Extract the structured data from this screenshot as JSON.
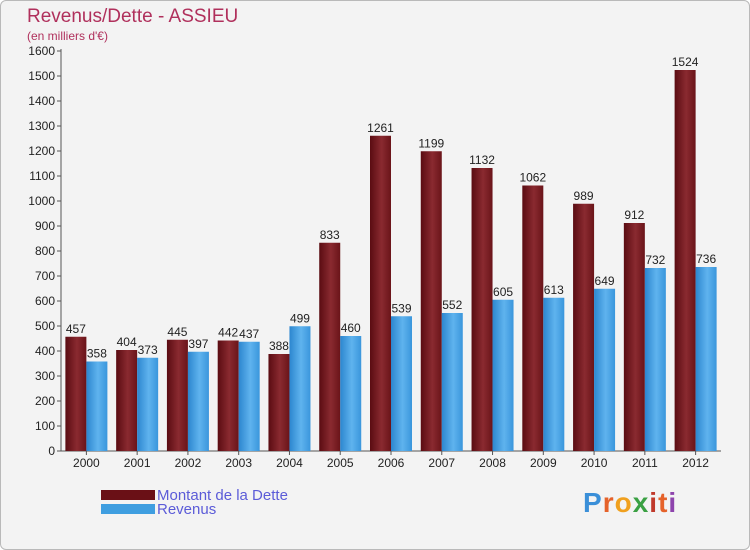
{
  "chart_data": {
    "type": "bar",
    "title": "Revenus/Dette - ASSIEU",
    "subtitle": "(en milliers d'€)",
    "categories": [
      "2000",
      "2001",
      "2002",
      "2003",
      "2004",
      "2005",
      "2006",
      "2007",
      "2008",
      "2009",
      "2010",
      "2011",
      "2012"
    ],
    "series": [
      {
        "name": "Montant de la Dette",
        "color": "#7a1d22",
        "values": [
          457,
          404,
          445,
          442,
          388,
          833,
          1261,
          1199,
          1132,
          1062,
          989,
          912,
          1524
        ]
      },
      {
        "name": "Revenus",
        "color": "#3f9ee0",
        "values": [
          358,
          373,
          397,
          437,
          499,
          460,
          539,
          552,
          605,
          613,
          649,
          732,
          736
        ]
      }
    ],
    "yticks": [
      0,
      100,
      200,
      300,
      400,
      500,
      600,
      700,
      800,
      900,
      1000,
      1100,
      1200,
      1300,
      1400,
      1500,
      1600
    ],
    "ylim": [
      0,
      1600
    ],
    "grid": false,
    "legend_position": "bottom-left"
  },
  "logo": {
    "letters": [
      "P",
      "r",
      "o",
      "x",
      "i",
      "t",
      "i"
    ],
    "colors": [
      "#3a8fd8",
      "#e5622a",
      "#f0a01e",
      "#3aa043",
      "#c0392b",
      "#e5622a",
      "#8e44ad"
    ]
  }
}
